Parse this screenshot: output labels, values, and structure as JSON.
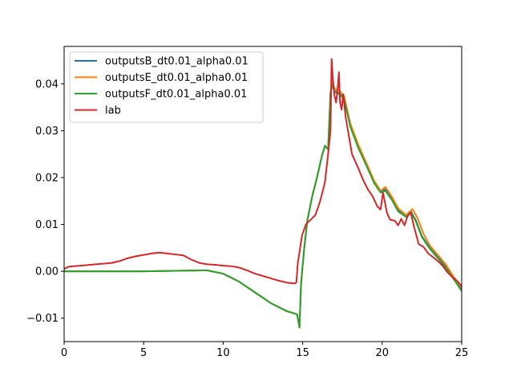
{
  "chart_data": {
    "type": "line",
    "title": "",
    "xlabel": "",
    "ylabel": "",
    "xlim": [
      0,
      25
    ],
    "ylim": [
      -0.015,
      0.048
    ],
    "xticks": [
      0,
      5,
      10,
      15,
      20,
      25
    ],
    "xtick_labels": [
      "0",
      "5",
      "10",
      "15",
      "20",
      "25"
    ],
    "yticks": [
      -0.01,
      0.0,
      0.01,
      0.02,
      0.03,
      0.04
    ],
    "ytick_labels": [
      "−0.01",
      "0.00",
      "0.01",
      "0.02",
      "0.03",
      "0.04"
    ],
    "grid": false,
    "legend_position": "upper-left",
    "series": [
      {
        "name": "outputsB_dt0.01_alpha0.01",
        "color": "#1f77b4",
        "points": [
          [
            0,
            0
          ],
          [
            5,
            0
          ],
          [
            7,
            0.0001
          ],
          [
            9,
            0.0002
          ],
          [
            10,
            -0.0005
          ],
          [
            11,
            -0.0022
          ],
          [
            12,
            -0.0045
          ],
          [
            13,
            -0.0068
          ],
          [
            14,
            -0.0085
          ],
          [
            14.5,
            -0.009
          ],
          [
            14.65,
            -0.0092
          ],
          [
            14.8,
            -0.012
          ],
          [
            14.9,
            -0.0025
          ],
          [
            15.1,
            0.005
          ],
          [
            15.3,
            0.011
          ],
          [
            15.6,
            0.016
          ],
          [
            15.9,
            0.02
          ],
          [
            16.2,
            0.0245
          ],
          [
            16.4,
            0.0268
          ],
          [
            16.6,
            0.026
          ],
          [
            16.75,
            0.038
          ],
          [
            16.85,
            0.04
          ],
          [
            17.0,
            0.0385
          ],
          [
            17.3,
            0.038
          ],
          [
            17.6,
            0.037
          ],
          [
            18,
            0.031
          ],
          [
            18.5,
            0.0265
          ],
          [
            19,
            0.0228
          ],
          [
            19.5,
            0.019
          ],
          [
            19.9,
            0.017
          ],
          [
            20.2,
            0.0175
          ],
          [
            20.6,
            0.0155
          ],
          [
            21,
            0.013
          ],
          [
            21.5,
            0.0118
          ],
          [
            21.8,
            0.0128
          ],
          [
            22.1,
            0.011
          ],
          [
            22.5,
            0.0075
          ],
          [
            23,
            0.005
          ],
          [
            23.5,
            0.003
          ],
          [
            24,
            0.001
          ],
          [
            24.5,
            -0.0015
          ],
          [
            25,
            -0.004
          ]
        ]
      },
      {
        "name": "outputsE_dt0.01_alpha0.01",
        "color": "#ff7f0e",
        "points": [
          [
            0,
            0
          ],
          [
            5,
            0
          ],
          [
            7,
            0.0001
          ],
          [
            9,
            0.0002
          ],
          [
            10,
            -0.0005
          ],
          [
            11,
            -0.0022
          ],
          [
            12,
            -0.0045
          ],
          [
            13,
            -0.0068
          ],
          [
            14,
            -0.0085
          ],
          [
            14.5,
            -0.009
          ],
          [
            14.65,
            -0.0092
          ],
          [
            14.8,
            -0.012
          ],
          [
            14.9,
            -0.0025
          ],
          [
            15.1,
            0.005
          ],
          [
            15.3,
            0.011
          ],
          [
            15.6,
            0.016
          ],
          [
            15.9,
            0.02
          ],
          [
            16.2,
            0.0245
          ],
          [
            16.4,
            0.0268
          ],
          [
            16.6,
            0.026
          ],
          [
            16.75,
            0.038
          ],
          [
            16.85,
            0.0405
          ],
          [
            17.0,
            0.039
          ],
          [
            17.3,
            0.0385
          ],
          [
            17.6,
            0.0375
          ],
          [
            18,
            0.0315
          ],
          [
            18.5,
            0.027
          ],
          [
            19,
            0.0232
          ],
          [
            19.5,
            0.0193
          ],
          [
            19.9,
            0.0172
          ],
          [
            20.2,
            0.018
          ],
          [
            20.6,
            0.016
          ],
          [
            21,
            0.0135
          ],
          [
            21.5,
            0.012
          ],
          [
            21.9,
            0.0133
          ],
          [
            22.2,
            0.0115
          ],
          [
            22.6,
            0.008
          ],
          [
            23,
            0.0055
          ],
          [
            23.5,
            0.0035
          ],
          [
            24,
            0.0015
          ],
          [
            24.5,
            -0.0012
          ],
          [
            25,
            -0.0035
          ]
        ]
      },
      {
        "name": "outputsF_dt0.01_alpha0.01",
        "color": "#2ca02c",
        "points": [
          [
            0,
            0
          ],
          [
            5,
            0
          ],
          [
            7,
            0.0001
          ],
          [
            9,
            0.0002
          ],
          [
            10,
            -0.0005
          ],
          [
            11,
            -0.0022
          ],
          [
            12,
            -0.0045
          ],
          [
            13,
            -0.0068
          ],
          [
            14,
            -0.0085
          ],
          [
            14.5,
            -0.009
          ],
          [
            14.65,
            -0.0092
          ],
          [
            14.8,
            -0.012
          ],
          [
            14.9,
            -0.0025
          ],
          [
            15.1,
            0.005
          ],
          [
            15.3,
            0.011
          ],
          [
            15.6,
            0.016
          ],
          [
            15.9,
            0.02
          ],
          [
            16.2,
            0.0245
          ],
          [
            16.4,
            0.0268
          ],
          [
            16.6,
            0.026
          ],
          [
            16.75,
            0.038
          ],
          [
            16.85,
            0.0398
          ],
          [
            17.0,
            0.0383
          ],
          [
            17.3,
            0.0378
          ],
          [
            17.6,
            0.0368
          ],
          [
            18,
            0.0308
          ],
          [
            18.5,
            0.0263
          ],
          [
            19,
            0.0226
          ],
          [
            19.5,
            0.0188
          ],
          [
            19.9,
            0.0168
          ],
          [
            20.2,
            0.0172
          ],
          [
            20.6,
            0.0153
          ],
          [
            21,
            0.0128
          ],
          [
            21.5,
            0.0116
          ],
          [
            21.8,
            0.0126
          ],
          [
            22.1,
            0.0108
          ],
          [
            22.5,
            0.0073
          ],
          [
            23,
            0.0048
          ],
          [
            23.5,
            0.0028
          ],
          [
            24,
            0.0008
          ],
          [
            24.5,
            -0.0017
          ],
          [
            25,
            -0.0042
          ]
        ]
      },
      {
        "name": "lab",
        "color": "#d62728",
        "points": [
          [
            0,
            0.0005
          ],
          [
            0.3,
            0.001
          ],
          [
            1,
            0.0012
          ],
          [
            2,
            0.0015
          ],
          [
            3,
            0.0018
          ],
          [
            3.5,
            0.0022
          ],
          [
            4,
            0.0028
          ],
          [
            4.5,
            0.0032
          ],
          [
            5,
            0.0035
          ],
          [
            5.5,
            0.0038
          ],
          [
            6,
            0.004
          ],
          [
            6.5,
            0.0038
          ],
          [
            7,
            0.0036
          ],
          [
            7.5,
            0.0034
          ],
          [
            8,
            0.0025
          ],
          [
            8.5,
            0.0018
          ],
          [
            9,
            0.0015
          ],
          [
            9.5,
            0.0014
          ],
          [
            10,
            0.0012
          ],
          [
            10.5,
            0.0011
          ],
          [
            11,
            0.0008
          ],
          [
            11.5,
            0.0002
          ],
          [
            12,
            -0.0005
          ],
          [
            12.5,
            -0.001
          ],
          [
            13,
            -0.0015
          ],
          [
            13.5,
            -0.002
          ],
          [
            14,
            -0.0024
          ],
          [
            14.5,
            -0.0026
          ],
          [
            14.6,
            -0.0024
          ],
          [
            14.7,
            0.002
          ],
          [
            14.8,
            0.004
          ],
          [
            14.95,
            0.0075
          ],
          [
            15.2,
            0.01
          ],
          [
            15.5,
            0.011
          ],
          [
            15.8,
            0.012
          ],
          [
            16.1,
            0.015
          ],
          [
            16.4,
            0.019
          ],
          [
            16.6,
            0.025
          ],
          [
            16.75,
            0.03
          ],
          [
            16.82,
            0.0453
          ],
          [
            16.9,
            0.041
          ],
          [
            17.0,
            0.0375
          ],
          [
            17.1,
            0.036
          ],
          [
            17.2,
            0.039
          ],
          [
            17.28,
            0.0425
          ],
          [
            17.35,
            0.036
          ],
          [
            17.45,
            0.0345
          ],
          [
            17.55,
            0.0378
          ],
          [
            17.7,
            0.033
          ],
          [
            17.9,
            0.029
          ],
          [
            18.1,
            0.025
          ],
          [
            18.3,
            0.0235
          ],
          [
            18.5,
            0.022
          ],
          [
            18.8,
            0.0195
          ],
          [
            19.1,
            0.0175
          ],
          [
            19.4,
            0.016
          ],
          [
            19.7,
            0.0138
          ],
          [
            19.9,
            0.0132
          ],
          [
            20.05,
            0.0168
          ],
          [
            20.3,
            0.0125
          ],
          [
            20.5,
            0.011
          ],
          [
            20.8,
            0.0108
          ],
          [
            21,
            0.0098
          ],
          [
            21.2,
            0.0112
          ],
          [
            21.4,
            0.0098
          ],
          [
            21.6,
            0.0118
          ],
          [
            21.8,
            0.0125
          ],
          [
            22,
            0.0095
          ],
          [
            22.3,
            0.0058
          ],
          [
            22.6,
            0.0052
          ],
          [
            22.9,
            0.0038
          ],
          [
            23.2,
            0.003
          ],
          [
            23.5,
            0.0022
          ],
          [
            23.8,
            0.0012
          ],
          [
            24.1,
            -0.0002
          ],
          [
            24.4,
            -0.0012
          ],
          [
            24.7,
            -0.002
          ],
          [
            25,
            -0.0032
          ]
        ]
      }
    ]
  }
}
